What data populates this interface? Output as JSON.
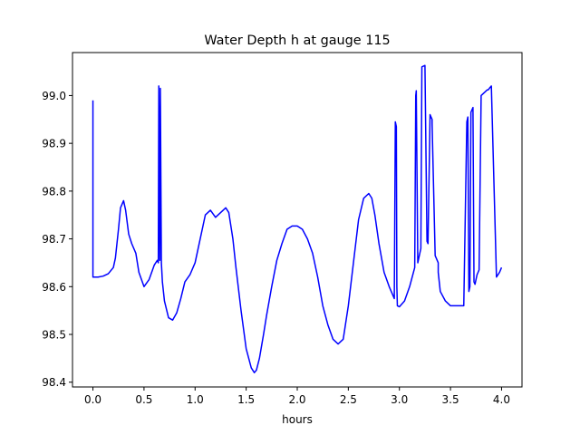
{
  "chart_data": {
    "type": "line",
    "title": "Water Depth h at gauge 115",
    "xlabel": "hours",
    "ylabel": "",
    "xlim": [
      -0.2,
      4.2
    ],
    "ylim": [
      98.39,
      99.09
    ],
    "x_ticks": [
      0.0,
      0.5,
      1.0,
      1.5,
      2.0,
      2.5,
      3.0,
      3.5,
      4.0
    ],
    "x_tick_labels": [
      "0.0",
      "0.5",
      "1.0",
      "1.5",
      "2.0",
      "2.5",
      "3.0",
      "3.5",
      "4.0"
    ],
    "y_ticks": [
      98.4,
      98.5,
      98.6,
      98.7,
      98.8,
      98.9,
      99.0
    ],
    "y_tick_labels": [
      "98.4",
      "98.5",
      "98.6",
      "98.7",
      "98.8",
      "98.9",
      "99.0"
    ],
    "grid": false,
    "series": [
      {
        "color": "#0000ff",
        "x": [
          0.0,
          0.0,
          0.05,
          0.1,
          0.15,
          0.2,
          0.22,
          0.25,
          0.27,
          0.3,
          0.32,
          0.35,
          0.38,
          0.42,
          0.45,
          0.5,
          0.55,
          0.6,
          0.63,
          0.64,
          0.645,
          0.655,
          0.66,
          0.67,
          0.68,
          0.7,
          0.74,
          0.78,
          0.82,
          0.86,
          0.9,
          0.95,
          1.0,
          1.05,
          1.1,
          1.15,
          1.2,
          1.25,
          1.3,
          1.33,
          1.37,
          1.4,
          1.45,
          1.5,
          1.55,
          1.58,
          1.6,
          1.63,
          1.67,
          1.7,
          1.75,
          1.8,
          1.85,
          1.9,
          1.95,
          2.0,
          2.05,
          2.1,
          2.15,
          2.2,
          2.25,
          2.3,
          2.35,
          2.4,
          2.45,
          2.5,
          2.55,
          2.6,
          2.65,
          2.7,
          2.73,
          2.76,
          2.8,
          2.85,
          2.9,
          2.95,
          2.96,
          2.97,
          2.975,
          2.98,
          3.0,
          3.05,
          3.1,
          3.15,
          3.16,
          3.165,
          3.18,
          3.21,
          3.22,
          3.25,
          3.27,
          3.28,
          3.3,
          3.31,
          3.32,
          3.32,
          3.35,
          3.38,
          3.38,
          3.4,
          3.45,
          3.5,
          3.55,
          3.6,
          3.63,
          3.66,
          3.67,
          3.68,
          3.69,
          3.7,
          3.71,
          3.72,
          3.73,
          3.74,
          3.75,
          3.76,
          3.77,
          3.78,
          3.8,
          3.85,
          3.86,
          3.87,
          3.88,
          3.9,
          3.95,
          3.98,
          4.0
        ],
        "y": [
          98.99,
          98.62,
          98.62,
          98.622,
          98.627,
          98.64,
          98.66,
          98.72,
          98.765,
          98.78,
          98.76,
          98.71,
          98.69,
          98.67,
          98.63,
          98.6,
          98.615,
          98.645,
          98.655,
          98.65,
          99.02,
          98.655,
          99.015,
          98.65,
          98.61,
          98.57,
          98.535,
          98.53,
          98.545,
          98.575,
          98.61,
          98.625,
          98.65,
          98.7,
          98.75,
          98.76,
          98.745,
          98.755,
          98.765,
          98.755,
          98.7,
          98.64,
          98.55,
          98.47,
          98.43,
          98.42,
          98.425,
          98.45,
          98.5,
          98.54,
          98.6,
          98.655,
          98.69,
          98.72,
          98.727,
          98.727,
          98.72,
          98.7,
          98.67,
          98.62,
          98.56,
          98.52,
          98.49,
          98.48,
          98.49,
          98.56,
          98.65,
          98.74,
          98.785,
          98.795,
          98.785,
          98.75,
          98.69,
          98.63,
          98.6,
          98.575,
          98.945,
          98.935,
          98.6,
          98.56,
          98.558,
          98.57,
          98.6,
          98.64,
          99.0,
          99.01,
          98.65,
          98.68,
          99.06,
          99.063,
          98.695,
          98.69,
          98.96,
          98.955,
          98.95,
          98.94,
          98.665,
          98.65,
          98.63,
          98.59,
          98.57,
          98.56,
          98.56,
          98.56,
          98.56,
          98.945,
          98.955,
          98.59,
          98.6,
          98.965,
          98.97,
          98.975,
          98.61,
          98.605,
          98.615,
          98.625,
          98.63,
          98.635,
          99.0,
          99.01,
          99.012,
          99.012,
          99.015,
          99.02,
          98.62,
          98.63,
          98.64
        ]
      }
    ]
  }
}
